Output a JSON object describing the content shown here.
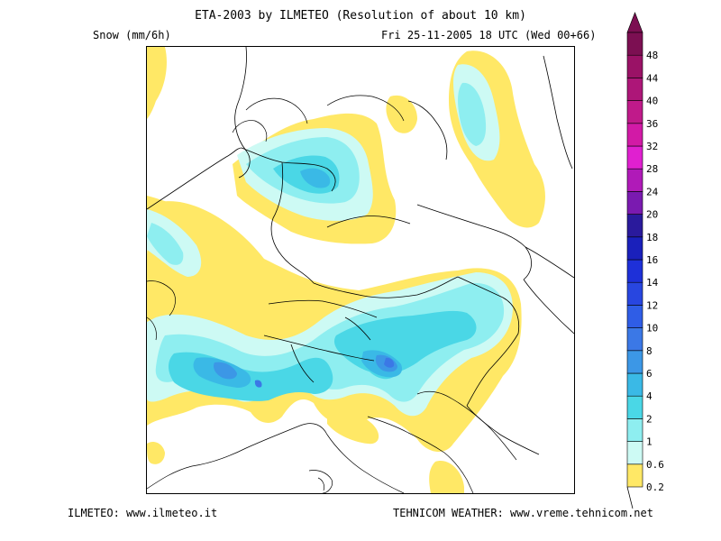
{
  "header": {
    "title": "ETA-2003 by ILMETEO (Resolution of about 10 km)",
    "variable": "Snow (mm/6h)",
    "valid_time": "Fri 25-11-2005 18 UTC (Wed 00+66)"
  },
  "footer": {
    "left": "ILMETEO: www.ilmeteo.it",
    "right": "TEHNICOM WEATHER: www.vreme.tehnicom.net"
  },
  "legend": {
    "levels": [
      {
        "value": "0.2",
        "color": "#ffe866"
      },
      {
        "value": "0.6",
        "color": "#cdfaf4"
      },
      {
        "value": "1",
        "color": "#8eeef0"
      },
      {
        "value": "2",
        "color": "#4ad7e6"
      },
      {
        "value": "4",
        "color": "#3ab9e6"
      },
      {
        "value": "6",
        "color": "#3c97e6"
      },
      {
        "value": "8",
        "color": "#3b78e6"
      },
      {
        "value": "10",
        "color": "#2f5de6"
      },
      {
        "value": "12",
        "color": "#2846e0"
      },
      {
        "value": "14",
        "color": "#1e30d8"
      },
      {
        "value": "16",
        "color": "#1a20bb"
      },
      {
        "value": "18",
        "color": "#2a1a9c"
      },
      {
        "value": "20",
        "color": "#7a1ab0"
      },
      {
        "value": "24",
        "color": "#b01ab8"
      },
      {
        "value": "28",
        "color": "#e020d0"
      },
      {
        "value": "32",
        "color": "#d21aa6"
      },
      {
        "value": "36",
        "color": "#c01a8a"
      },
      {
        "value": "40",
        "color": "#ad1678"
      },
      {
        "value": "44",
        "color": "#9a1266"
      },
      {
        "value": "48",
        "color": "#7c0f52"
      }
    ]
  },
  "map": {
    "colors": {
      "yellow": "#ffe866",
      "pale": "#cdfaf4",
      "light": "#8eeef0",
      "mid": "#4ad7e6",
      "deep": "#3ab9e6",
      "deeper": "#3c97e6",
      "deepest": "#3b78e6"
    }
  }
}
